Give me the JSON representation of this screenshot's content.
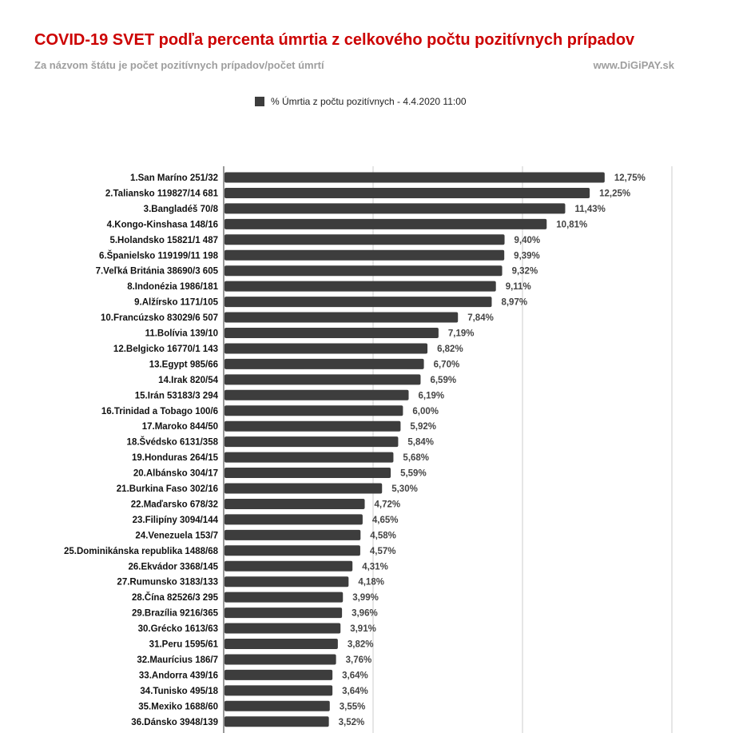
{
  "header": {
    "title": "COVID-19 SVET podľa percenta úmrtia z celkového počtu pozitívnych prípadov",
    "subtitle": "Za názvom štátu je počet pozitívnych prípadov/počet úmrtí",
    "source": "www.DiGiPAY.sk"
  },
  "legend": {
    "label": "% Úmrtia z počtu pozitívnych  - 4.4.2020  11:00"
  },
  "colors": {
    "title": "#cc0000",
    "bar": "#3d3d3d",
    "grid": "#cccccc"
  },
  "chart_data": {
    "type": "bar",
    "orientation": "horizontal",
    "series": [
      {
        "name": "% Úmrtia z počtu pozitívnych  - 4.4.2020  11:00"
      }
    ],
    "xlim": [
      0,
      15
    ],
    "grid": true,
    "legend_position": "top",
    "categories": [
      "1.San Maríno 251/32",
      "2.Taliansko 119827/14 681",
      "3.Bangladéš 70/8",
      "4.Kongo-Kinshasa 148/16",
      "5.Holandsko 15821/1 487",
      "6.Španielsko 119199/11 198",
      "7.Veľká Británia 38690/3 605",
      "8.Indonézia 1986/181",
      "9.Alžírsko 1171/105",
      "10.Francúzsko 83029/6 507",
      "11.Bolívia 139/10",
      "12.Belgicko 16770/1 143",
      "13.Egypt 985/66",
      "14.Irak 820/54",
      "15.Irán 53183/3 294",
      "16.Trinidad a Tobago 100/6",
      "17.Maroko 844/50",
      "18.Švédsko 6131/358",
      "19.Honduras 264/15",
      "20.Albánsko 304/17",
      "21.Burkina Faso 302/16",
      "22.Maďarsko 678/32",
      "23.Filipíny 3094/144",
      "24.Venezuela 153/7",
      "25.Dominikánska republika 1488/68",
      "26.Ekvádor 3368/145",
      "27.Rumunsko 3183/133",
      "28.Čína 82526/3 295",
      "29.Brazília 9216/365",
      "30.Grécko 1613/63",
      "31.Peru 1595/61",
      "32.Maurícius 186/7",
      "33.Andorra 439/16",
      "34.Tunisko 495/18",
      "35.Mexiko 1688/60",
      "36.Dánsko 3948/139"
    ],
    "values": [
      12.75,
      12.25,
      11.43,
      10.81,
      9.4,
      9.39,
      9.32,
      9.11,
      8.97,
      7.84,
      7.19,
      6.82,
      6.7,
      6.59,
      6.19,
      6.0,
      5.92,
      5.84,
      5.68,
      5.59,
      5.3,
      4.72,
      4.65,
      4.58,
      4.57,
      4.31,
      4.18,
      3.99,
      3.96,
      3.91,
      3.82,
      3.76,
      3.64,
      3.64,
      3.55,
      3.52
    ],
    "value_labels": [
      "12,75%",
      "12,25%",
      "11,43%",
      "10,81%",
      "9,40%",
      "9,39%",
      "9,32%",
      "9,11%",
      "8,97%",
      "7,84%",
      "7,19%",
      "6,82%",
      "6,70%",
      "6,59%",
      "6,19%",
      "6,00%",
      "5,92%",
      "5,84%",
      "5,68%",
      "5,59%",
      "5,30%",
      "4,72%",
      "4,65%",
      "4,58%",
      "4,57%",
      "4,31%",
      "4,18%",
      "3,99%",
      "3,96%",
      "3,91%",
      "3,82%",
      "3,76%",
      "3,64%",
      "3,64%",
      "3,55%",
      "3,52%"
    ],
    "gridlines": [
      5,
      10,
      15
    ]
  }
}
